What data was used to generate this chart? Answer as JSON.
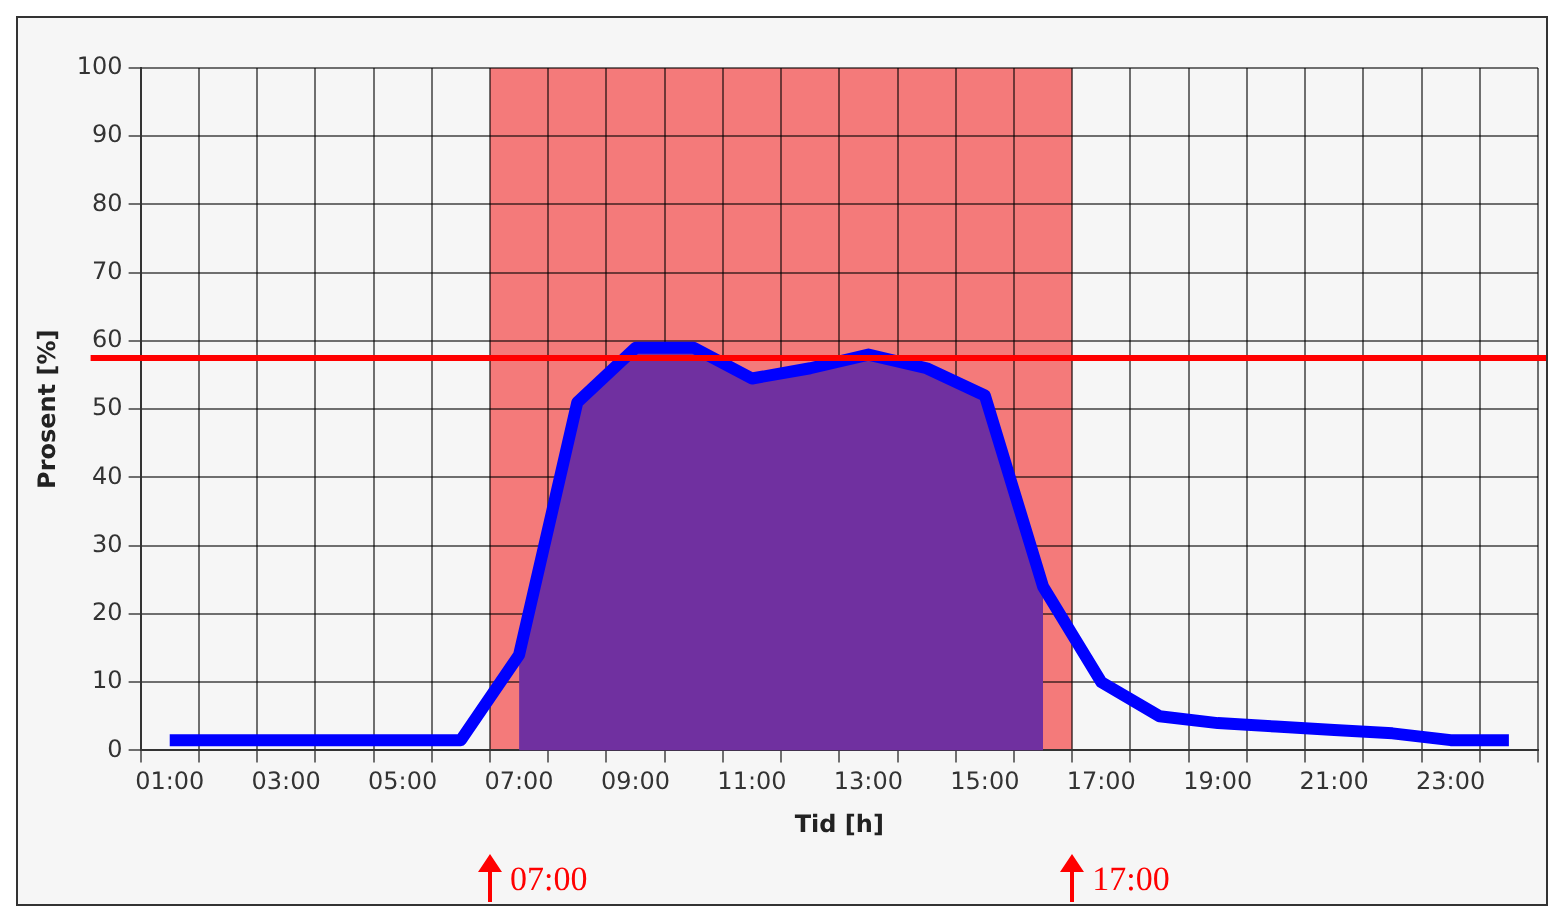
{
  "chart_data": {
    "type": "line",
    "xlabel": "Tid [h]",
    "ylabel": "Prosent [%]",
    "x": [
      1,
      2,
      3,
      4,
      5,
      6,
      7,
      8,
      9,
      10,
      11,
      12,
      13,
      14,
      15,
      16,
      17,
      18,
      19,
      20,
      21,
      22,
      23,
      24
    ],
    "series": [
      {
        "type": "area",
        "color": "#7030a0",
        "values": [
          null,
          null,
          null,
          null,
          null,
          null,
          14,
          51,
          59,
          59,
          54.5,
          56,
          58,
          56,
          52,
          24,
          null,
          null,
          null,
          null,
          null,
          null,
          null,
          null
        ]
      },
      {
        "type": "line",
        "color": "#0000ff",
        "values": [
          1.5,
          1.5,
          1.5,
          1.5,
          1.5,
          1.5,
          14,
          51,
          59,
          59,
          54.5,
          56,
          58,
          56,
          52,
          24,
          10,
          5,
          4,
          3.5,
          3,
          2.5,
          1.5,
          1.5
        ]
      }
    ],
    "xlim": [
      0.5,
      24.5
    ],
    "xticks": [
      {
        "value": 0.5,
        "label": null
      },
      {
        "value": 1,
        "label": "01:00"
      },
      {
        "value": 1.5,
        "label": null
      },
      {
        "value": 2.5,
        "label": null
      },
      {
        "value": 3,
        "label": "03:00"
      },
      {
        "value": 3.5,
        "label": null
      },
      {
        "value": 4.5,
        "label": null
      },
      {
        "value": 5,
        "label": "05:00"
      },
      {
        "value": 5.5,
        "label": null
      },
      {
        "value": 6.5,
        "label": null
      },
      {
        "value": 7,
        "label": "07:00"
      },
      {
        "value": 7.5,
        "label": null
      },
      {
        "value": 8.5,
        "label": null
      },
      {
        "value": 9,
        "label": "09:00"
      },
      {
        "value": 9.5,
        "label": null
      },
      {
        "value": 10.5,
        "label": null
      },
      {
        "value": 11,
        "label": "11:00"
      },
      {
        "value": 11.5,
        "label": null
      },
      {
        "value": 12.5,
        "label": null
      },
      {
        "value": 13,
        "label": "13:00"
      },
      {
        "value": 13.5,
        "label": null
      },
      {
        "value": 14.5,
        "label": null
      },
      {
        "value": 15,
        "label": "15:00"
      },
      {
        "value": 15.5,
        "label": null
      },
      {
        "value": 16.5,
        "label": null
      },
      {
        "value": 17,
        "label": "17:00"
      },
      {
        "value": 17.5,
        "label": null
      },
      {
        "value": 18.5,
        "label": null
      },
      {
        "value": 19,
        "label": "19:00"
      },
      {
        "value": 19.5,
        "label": null
      },
      {
        "value": 20.5,
        "label": null
      },
      {
        "value": 21,
        "label": "21:00"
      },
      {
        "value": 21.5,
        "label": null
      },
      {
        "value": 22.5,
        "label": null
      },
      {
        "value": 23,
        "label": "23:00"
      },
      {
        "value": 23.5,
        "label": null
      },
      {
        "value": 24.5,
        "label": null
      }
    ],
    "ylim": [
      0,
      100
    ],
    "yticks": [
      0,
      10,
      20,
      30,
      40,
      50,
      60,
      70,
      80,
      90,
      100
    ],
    "grid": true,
    "legend": false,
    "marker": "none",
    "line_style": "solid",
    "bands": [
      {
        "axis": "x",
        "from": 6.5,
        "to": 16.5,
        "color": "#f47a7a"
      }
    ],
    "ref_lines": [
      {
        "axis": "y",
        "value": 57.5,
        "color": "#ff0000"
      }
    ],
    "annotations": [
      "07:00",
      "17:00"
    ]
  }
}
